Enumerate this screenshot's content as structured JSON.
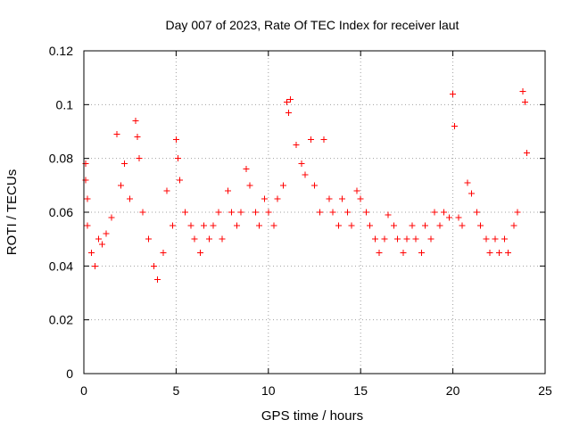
{
  "chart_data": {
    "type": "scatter",
    "title": "Day 007 of 2023, Rate Of TEC Index for receiver laut",
    "xlabel": "GPS time / hours",
    "ylabel": "ROTI / TECUs",
    "xlim": [
      0,
      25
    ],
    "ylim": [
      0,
      0.12
    ],
    "x_ticks": [
      "0",
      "5",
      "10",
      "15",
      "20",
      "25"
    ],
    "y_ticks": [
      "0",
      "0.02",
      "0.04",
      "0.06",
      "0.08",
      "0.1",
      "0.12"
    ],
    "x_tick_values": [
      0,
      5,
      10,
      15,
      20,
      25
    ],
    "y_tick_values": [
      0,
      0.02,
      0.04,
      0.06,
      0.07999999999999999,
      0.1,
      0.12
    ],
    "grid": true,
    "marker": "plus",
    "color": "#ff0000",
    "series": [
      {
        "x": [
          0.1,
          0.1,
          0.2,
          0.2,
          0.4,
          0.6,
          0.8,
          1.0,
          1.2,
          1.5,
          1.8,
          2.0,
          2.2,
          2.5,
          2.8,
          2.9,
          3.0,
          3.2,
          3.5,
          3.8,
          4.0,
          4.3,
          4.5,
          4.8,
          5.0,
          5.1,
          5.2,
          5.5,
          5.8,
          6.0,
          6.3,
          6.5,
          6.8,
          7.0,
          7.3,
          7.5,
          7.8,
          8.0,
          8.3,
          8.5,
          8.8,
          9.0,
          9.3,
          9.5,
          9.8,
          10.0,
          10.3,
          10.5,
          10.8,
          11.0,
          11.1,
          11.2,
          11.5,
          11.8,
          12.0,
          12.3,
          12.5,
          12.8,
          13.0,
          13.3,
          13.5,
          13.8,
          14.0,
          14.3,
          14.5,
          14.8,
          15.0,
          15.3,
          15.5,
          15.8,
          16.0,
          16.3,
          16.5,
          16.8,
          17.0,
          17.3,
          17.5,
          17.8,
          18.0,
          18.3,
          18.5,
          18.8,
          19.0,
          19.3,
          19.5,
          19.8,
          20.0,
          20.1,
          20.3,
          20.5,
          20.8,
          21.0,
          21.3,
          21.5,
          21.8,
          22.0,
          22.3,
          22.5,
          22.8,
          23.0,
          23.3,
          23.5,
          23.8,
          23.9,
          24.0
        ],
        "y": [
          0.078,
          0.072,
          0.065,
          0.055,
          0.045,
          0.04,
          0.05,
          0.048,
          0.052,
          0.058,
          0.089,
          0.07,
          0.078,
          0.065,
          0.094,
          0.088,
          0.08,
          0.06,
          0.05,
          0.04,
          0.035,
          0.045,
          0.068,
          0.055,
          0.087,
          0.08,
          0.072,
          0.06,
          0.055,
          0.05,
          0.045,
          0.055,
          0.05,
          0.055,
          0.06,
          0.05,
          0.068,
          0.06,
          0.055,
          0.06,
          0.076,
          0.07,
          0.06,
          0.055,
          0.065,
          0.06,
          0.055,
          0.065,
          0.07,
          0.101,
          0.097,
          0.102,
          0.085,
          0.078,
          0.074,
          0.087,
          0.07,
          0.06,
          0.087,
          0.065,
          0.06,
          0.055,
          0.065,
          0.06,
          0.055,
          0.068,
          0.065,
          0.06,
          0.055,
          0.05,
          0.045,
          0.05,
          0.059,
          0.055,
          0.05,
          0.045,
          0.05,
          0.055,
          0.05,
          0.045,
          0.055,
          0.05,
          0.06,
          0.055,
          0.06,
          0.058,
          0.104,
          0.092,
          0.058,
          0.055,
          0.071,
          0.067,
          0.06,
          0.055,
          0.05,
          0.045,
          0.05,
          0.045,
          0.05,
          0.045,
          0.055,
          0.06,
          0.105,
          0.101,
          0.082
        ]
      }
    ]
  }
}
